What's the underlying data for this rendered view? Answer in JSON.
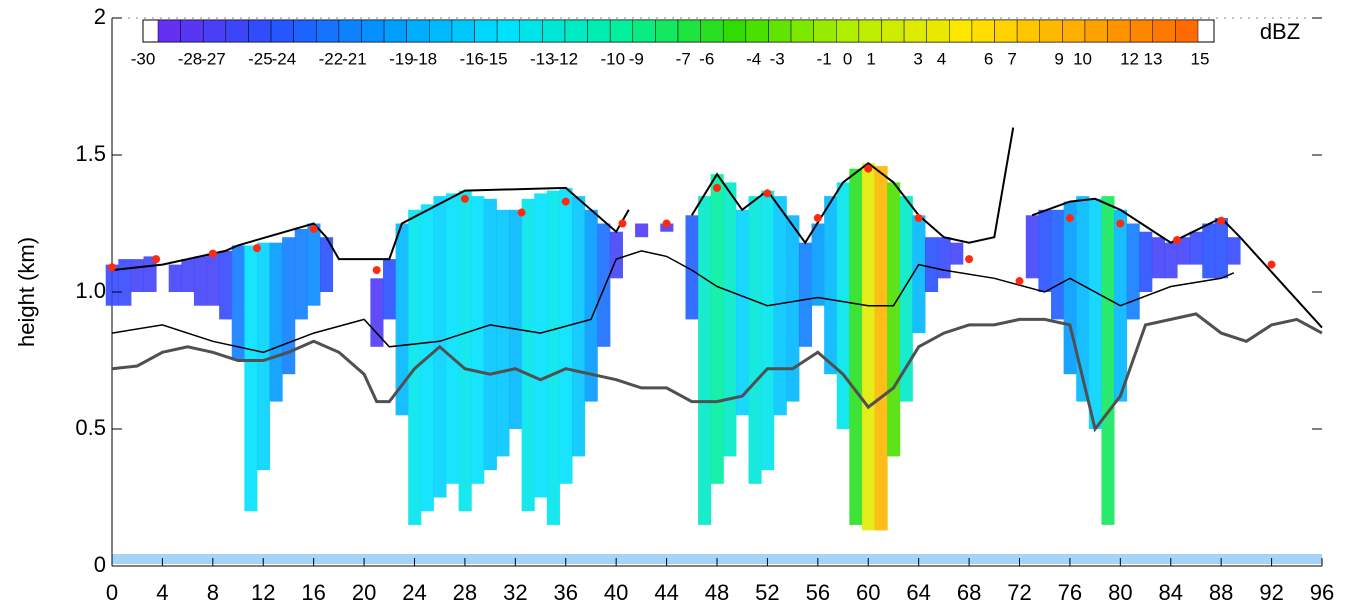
{
  "chart_data": {
    "type": "radar-time-height",
    "ylabel": "height (km)",
    "xlim": [
      0,
      96
    ],
    "ylim": [
      0,
      2
    ],
    "xticks": [
      0,
      4,
      8,
      12,
      16,
      20,
      24,
      28,
      32,
      36,
      40,
      44,
      48,
      52,
      56,
      60,
      64,
      68,
      72,
      76,
      80,
      84,
      88,
      92,
      96
    ],
    "yticks": [
      0,
      0.5,
      {
        "value": 1,
        "label": "1.0"
      },
      1.5,
      2
    ],
    "colorbar": {
      "title": "dBZ",
      "labels": [
        -30,
        -28,
        -27,
        -25,
        -24,
        -22,
        -21,
        -19,
        -18,
        -16,
        -15,
        -13,
        -12,
        -10,
        -9,
        -7,
        -6,
        -4,
        -3,
        -1,
        0,
        1,
        3,
        4,
        6,
        7,
        9,
        10,
        12,
        13,
        15
      ],
      "colors": [
        "#6a2cf0",
        "#2850ff",
        "#009bff",
        "#00e1ff",
        "#00f0a0",
        "#32dc00",
        "#b4f000",
        "#ffe600",
        "#ffaa00",
        "#ff6400"
      ]
    },
    "echo": {
      "x": [
        0,
        1,
        2,
        3,
        4,
        5,
        6,
        7,
        8,
        9,
        10,
        11,
        12,
        13,
        14,
        15,
        16,
        17,
        18,
        19,
        20,
        21,
        22,
        23,
        24,
        25,
        26,
        27,
        28,
        29,
        30,
        31,
        32,
        33,
        34,
        35,
        36,
        37,
        38,
        39,
        40,
        41,
        42,
        43,
        44,
        45,
        46,
        47,
        48,
        49,
        50,
        51,
        52,
        53,
        54,
        55,
        56,
        57,
        58,
        59,
        60,
        61,
        62,
        63,
        64,
        65,
        66,
        67,
        68,
        69,
        70,
        71,
        72,
        73,
        74,
        75,
        76,
        77,
        78,
        79,
        80,
        81,
        82,
        83,
        84,
        85,
        86,
        87,
        88,
        89
      ],
      "top": [
        1.1,
        1.12,
        1.12,
        1.13,
        null,
        1.1,
        1.12,
        1.13,
        1.14,
        1.15,
        1.17,
        1.17,
        1.18,
        1.18,
        1.2,
        1.23,
        1.25,
        1.2,
        null,
        null,
        null,
        1.05,
        1.12,
        1.25,
        1.3,
        1.32,
        1.35,
        1.36,
        1.37,
        1.35,
        1.34,
        1.3,
        1.3,
        1.34,
        1.36,
        1.37,
        1.38,
        1.35,
        1.3,
        1.25,
        1.22,
        null,
        1.25,
        null,
        1.25,
        null,
        1.28,
        1.35,
        1.43,
        1.4,
        1.3,
        1.35,
        1.37,
        1.35,
        1.28,
        1.18,
        1.25,
        1.35,
        1.4,
        1.45,
        1.47,
        1.46,
        1.4,
        1.35,
        1.28,
        1.2,
        1.2,
        1.18,
        null,
        null,
        null,
        null,
        null,
        1.28,
        1.3,
        1.3,
        1.33,
        1.35,
        1.34,
        1.35,
        1.3,
        1.25,
        1.22,
        1.2,
        1.18,
        1.2,
        1.22,
        1.25,
        1.27,
        1.2
      ],
      "base": [
        0.95,
        0.95,
        1.0,
        1.0,
        null,
        1.0,
        1.0,
        0.95,
        0.95,
        0.9,
        0.75,
        0.2,
        0.35,
        0.6,
        0.7,
        0.9,
        0.95,
        1.0,
        null,
        null,
        null,
        0.8,
        0.9,
        0.55,
        0.15,
        0.2,
        0.25,
        0.3,
        0.2,
        0.3,
        0.35,
        0.4,
        0.5,
        0.2,
        0.25,
        0.15,
        0.3,
        0.4,
        0.6,
        0.8,
        1.05,
        null,
        1.2,
        null,
        1.22,
        null,
        0.9,
        0.15,
        0.3,
        0.4,
        0.55,
        0.3,
        0.35,
        0.55,
        0.6,
        0.8,
        0.95,
        0.7,
        0.5,
        0.15,
        0.13,
        0.13,
        0.4,
        0.6,
        0.85,
        1.0,
        1.05,
        1.1,
        null,
        null,
        null,
        null,
        null,
        1.05,
        1.0,
        0.9,
        0.7,
        0.6,
        0.5,
        0.15,
        0.6,
        0.9,
        1.0,
        1.05,
        1.05,
        1.1,
        1.1,
        1.05,
        1.05,
        1.1
      ],
      "dbz": [
        -26,
        -26,
        -27,
        -27,
        null,
        -27,
        -27,
        -27,
        -27,
        -26,
        -22,
        -15,
        -16,
        -20,
        -22,
        -22,
        -21,
        -25,
        null,
        null,
        null,
        -28,
        -25,
        -18,
        -14,
        -15,
        -16,
        -15,
        -14,
        -15,
        -17,
        -17,
        -18,
        -14,
        -15,
        -14,
        -15,
        -17,
        -20,
        -23,
        -27,
        null,
        -28,
        null,
        -28,
        null,
        -24,
        -12,
        -10,
        -12,
        -16,
        -13,
        -14,
        -17,
        -18,
        -22,
        -20,
        -18,
        -14,
        -6,
        3,
        9,
        -4,
        -12,
        -18,
        -25,
        -26,
        -27,
        null,
        null,
        null,
        null,
        null,
        -27,
        -25,
        -24,
        -20,
        -18,
        -16,
        -8,
        -18,
        -22,
        -25,
        -27,
        -27,
        -27,
        -26,
        -25,
        -25,
        -26
      ]
    },
    "lines": [
      {
        "color": "#000000",
        "width": 2,
        "x": [
          0,
          4,
          9,
          10,
          16,
          17,
          18,
          21,
          22,
          23,
          28,
          36,
          40,
          41,
          42,
          46,
          48,
          50,
          52,
          55,
          58,
          60,
          62,
          64,
          66,
          68,
          70,
          71.5,
          72,
          73,
          76,
          78,
          80,
          84,
          88,
          89.5,
          96
        ],
        "values": [
          1.08,
          1.1,
          1.15,
          1.17,
          1.25,
          1.2,
          1.12,
          1.12,
          1.12,
          1.25,
          1.37,
          1.38,
          1.22,
          1.3,
          null,
          1.28,
          1.43,
          1.3,
          1.37,
          1.18,
          1.4,
          1.47,
          1.4,
          1.28,
          1.2,
          1.18,
          1.2,
          1.6,
          null,
          1.28,
          1.33,
          1.34,
          1.3,
          1.18,
          1.27,
          1.2,
          0.87
        ]
      },
      {
        "color": "#000000",
        "width": 1.5,
        "x": [
          0,
          4,
          8,
          12,
          16,
          20,
          22,
          26,
          30,
          34,
          38,
          40,
          42,
          44,
          46,
          48,
          52,
          56,
          60,
          62,
          64,
          66,
          70,
          74,
          76,
          80,
          84,
          88,
          89
        ],
        "values": [
          0.85,
          0.88,
          0.82,
          0.78,
          0.85,
          0.9,
          0.8,
          0.82,
          0.88,
          0.85,
          0.9,
          1.12,
          1.15,
          1.13,
          1.08,
          1.02,
          0.95,
          0.98,
          0.95,
          0.95,
          1.1,
          1.08,
          1.05,
          1.0,
          1.05,
          0.95,
          1.02,
          1.05,
          1.07
        ]
      },
      {
        "color": "#505050",
        "width": 3,
        "x": [
          0,
          2,
          4,
          6,
          8,
          10,
          12,
          14,
          16,
          18,
          20,
          21,
          22,
          24,
          26,
          28,
          30,
          32,
          34,
          36,
          38,
          40,
          42,
          44,
          46,
          48,
          50,
          52,
          54,
          56,
          58,
          60,
          62,
          64,
          66,
          68,
          70,
          72,
          74,
          76,
          78,
          80,
          82,
          84,
          86,
          88,
          90,
          92,
          94,
          96
        ],
        "values": [
          0.72,
          0.73,
          0.78,
          0.8,
          0.78,
          0.75,
          0.75,
          0.78,
          0.82,
          0.78,
          0.7,
          0.6,
          0.6,
          0.72,
          0.8,
          0.72,
          0.7,
          0.72,
          0.68,
          0.72,
          0.7,
          0.68,
          0.65,
          0.65,
          0.6,
          0.6,
          0.62,
          0.72,
          0.72,
          0.78,
          0.7,
          0.58,
          0.65,
          0.8,
          0.85,
          0.88,
          0.88,
          0.9,
          0.9,
          0.88,
          0.5,
          0.62,
          0.88,
          0.9,
          0.92,
          0.85,
          0.82,
          0.88,
          0.9,
          0.85
        ]
      }
    ],
    "dots": {
      "color": "#ff2a10",
      "x": [
        0,
        3.5,
        8,
        11.5,
        16,
        21,
        28,
        32.5,
        36,
        40.5,
        44,
        48,
        52,
        56,
        60,
        64,
        68,
        72,
        76,
        80,
        84.5,
        88,
        92
      ],
      "values": [
        1.09,
        1.12,
        1.14,
        1.16,
        1.23,
        1.08,
        1.34,
        1.29,
        1.33,
        1.25,
        1.25,
        1.38,
        1.36,
        1.27,
        1.45,
        1.27,
        1.12,
        1.04,
        1.27,
        1.25,
        1.19,
        1.26,
        1.1
      ]
    }
  }
}
